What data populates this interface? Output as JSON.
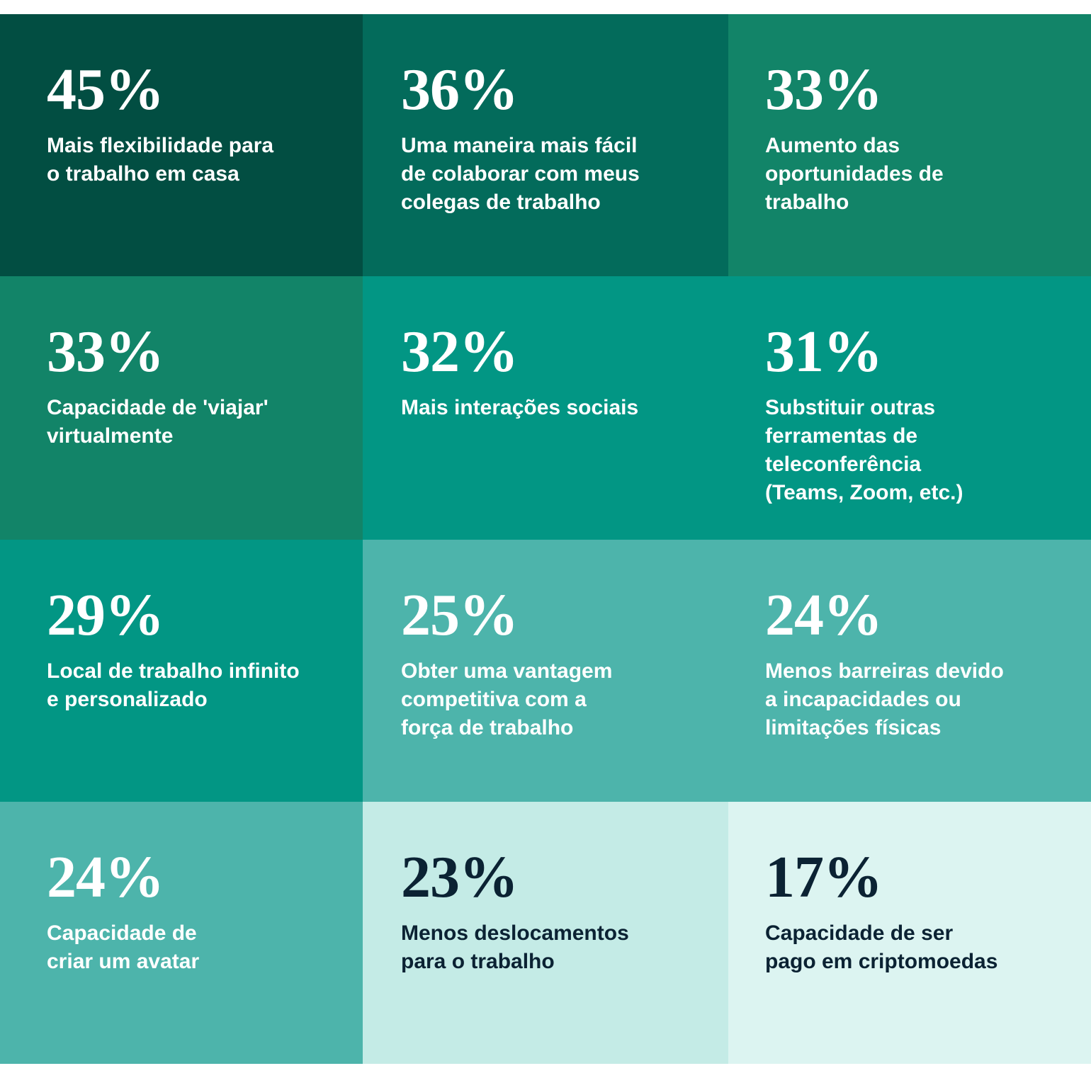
{
  "chart_data": {
    "type": "table",
    "unit": "%",
    "cells": [
      {
        "value": "45%",
        "label": "Mais flexibilidade para\no trabalho em casa",
        "bg": "#024e42",
        "fg": "#ffffff"
      },
      {
        "value": "36%",
        "label": "Uma maneira mais fácil\nde colaborar com meus\ncolegas de trabalho",
        "bg": "#036b5b",
        "fg": "#ffffff"
      },
      {
        "value": "33%",
        "label": "Aumento das\noportunidades de\ntrabalho",
        "bg": "#128468",
        "fg": "#ffffff"
      },
      {
        "value": "33%",
        "label": "Capacidade de 'viajar'\nvirtualmente",
        "bg": "#128468",
        "fg": "#ffffff"
      },
      {
        "value": "32%",
        "label": "Mais interações sociais",
        "bg": "#029684",
        "fg": "#ffffff"
      },
      {
        "value": "31%",
        "label": "Substituir outras\nferramentas de\nteleconferência\n(Teams, Zoom, etc.)",
        "bg": "#029684",
        "fg": "#ffffff"
      },
      {
        "value": "29%",
        "label": "Local de trabalho infinito\ne personalizado",
        "bg": "#029684",
        "fg": "#ffffff"
      },
      {
        "value": "25%",
        "label": "Obter uma vantagem\ncompetitiva com a\nforça de trabalho",
        "bg": "#4db4ab",
        "fg": "#ffffff"
      },
      {
        "value": "24%",
        "label": "Menos barreiras devido\na incapacidades  ou\nlimitações físicas",
        "bg": "#4db4ab",
        "fg": "#ffffff"
      },
      {
        "value": "24%",
        "label": "Capacidade de\ncriar um avatar",
        "bg": "#4db4ab",
        "fg": "#ffffff"
      },
      {
        "value": "23%",
        "label": "Menos deslocamentos\npara o trabalho",
        "bg": "#c4ebe6",
        "fg": "#0b2233"
      },
      {
        "value": "17%",
        "label": "Capacidade de ser\npago em criptomoedas",
        "bg": "#dcf4f1",
        "fg": "#0b2233"
      }
    ]
  }
}
